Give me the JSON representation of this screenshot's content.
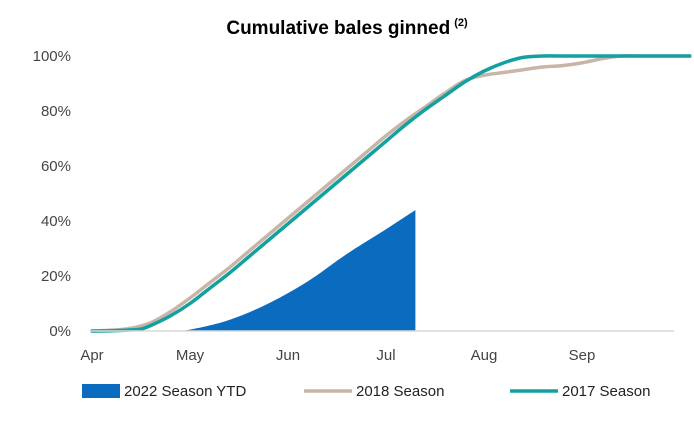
{
  "chart_data": {
    "type": "area",
    "title": "Cumulative bales ginned",
    "title_superscript": "(2)",
    "xlabel": "",
    "ylabel": "",
    "x_categories": [
      "Apr",
      "May",
      "Jun",
      "Jul",
      "Aug",
      "Sep"
    ],
    "y_ticks": [
      "0%",
      "20%",
      "40%",
      "60%",
      "80%",
      "100%"
    ],
    "ylim": [
      0,
      100
    ],
    "xlim": [
      0,
      6.1
    ],
    "grid": false,
    "legend_position": "bottom",
    "series": [
      {
        "name": "2022 Season YTD",
        "kind": "area",
        "color": "#0b6bbf",
        "x": [
          0.8,
          1.0,
          1.4,
          1.8,
          2.2,
          2.6,
          3.0,
          3.3
        ],
        "y": [
          0,
          0.5,
          4,
          10,
          18,
          28,
          37,
          44
        ]
      },
      {
        "name": "2018 Season",
        "kind": "line",
        "color": "#c8b5a8",
        "x": [
          0,
          0.2,
          0.4,
          0.6,
          0.8,
          1.0,
          1.2,
          1.4,
          1.6,
          1.8,
          2.0,
          2.2,
          2.4,
          2.6,
          2.8,
          3.0,
          3.2,
          3.4,
          3.6,
          3.8,
          4.0,
          4.2,
          4.4,
          4.6,
          4.8,
          5.0,
          5.2,
          5.4,
          5.6,
          5.8,
          6.0,
          6.1
        ],
        "y": [
          0,
          0.3,
          1,
          3,
          7,
          12,
          17.5,
          23,
          29,
          35,
          41,
          47,
          53,
          59,
          65,
          71,
          76.5,
          81.5,
          86.5,
          91,
          93,
          94,
          95,
          96,
          96.5,
          97.5,
          99,
          100,
          100,
          100,
          100,
          100
        ]
      },
      {
        "name": "2017 Season",
        "kind": "line",
        "color": "#13a0a0",
        "x": [
          0,
          0.2,
          0.4,
          0.5,
          0.6,
          0.8,
          1.0,
          1.2,
          1.4,
          1.6,
          1.8,
          2.0,
          2.2,
          2.4,
          2.6,
          2.8,
          3.0,
          3.2,
          3.4,
          3.6,
          3.8,
          4.0,
          4.2,
          4.4,
          4.6,
          4.8,
          5.0,
          5.2,
          5.4,
          5.6,
          5.8,
          6.0,
          6.1
        ],
        "y": [
          0,
          0.1,
          0.4,
          0.7,
          2,
          5.5,
          10,
          15.5,
          21,
          27,
          33,
          39,
          45,
          51,
          57,
          63,
          69,
          75,
          80.5,
          85.5,
          90.5,
          94.5,
          97.5,
          99.5,
          100,
          100,
          100,
          100,
          100,
          100,
          100,
          100,
          100
        ]
      }
    ]
  }
}
